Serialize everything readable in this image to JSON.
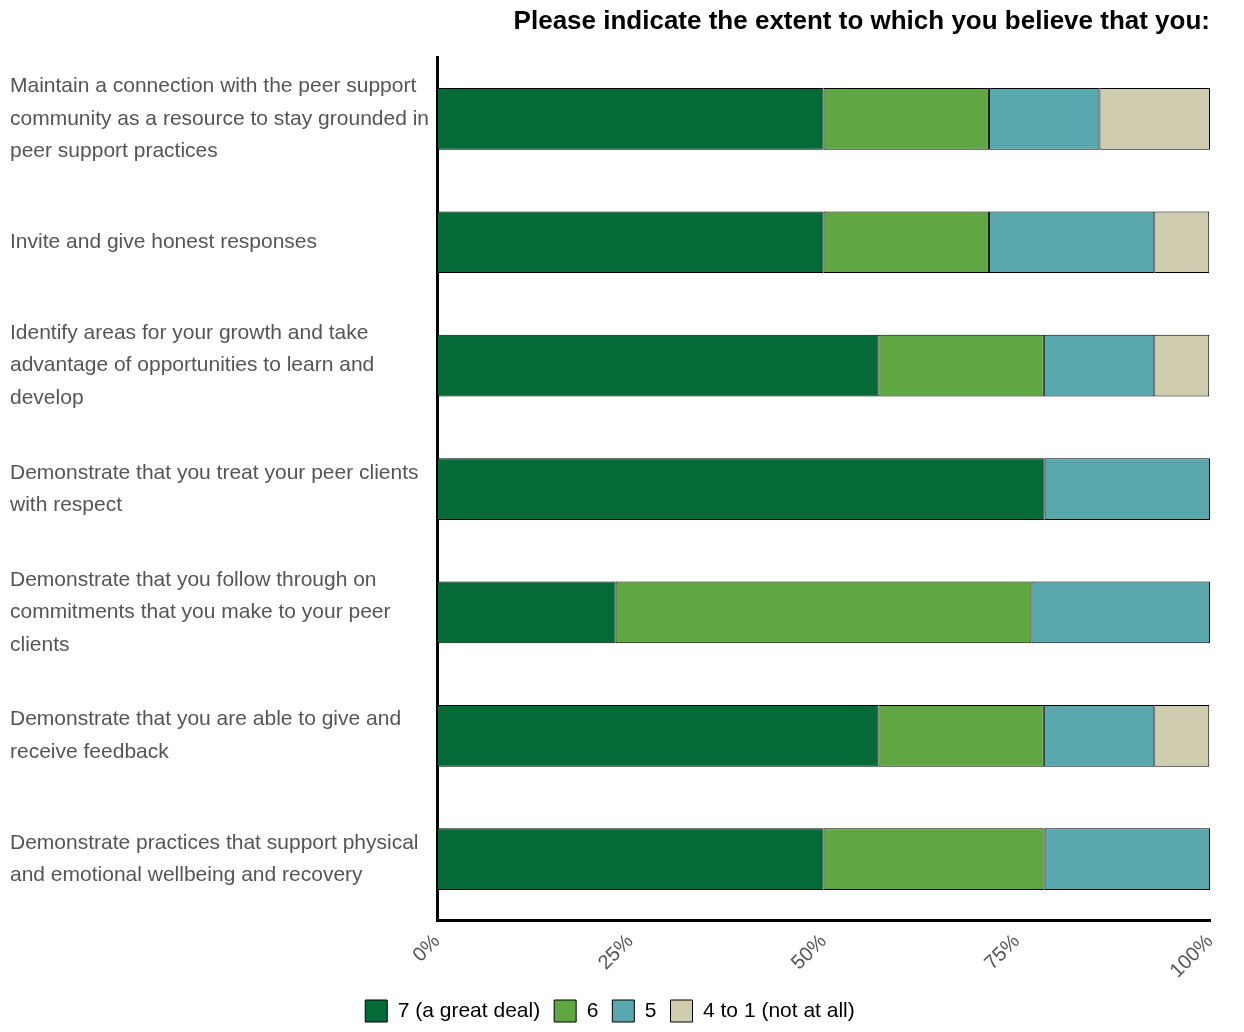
{
  "chart_data": {
    "type": "bar",
    "orientation": "horizontal",
    "stacked": true,
    "title": "Please indicate the extent to which you believe that you:",
    "categories": [
      "Maintain a connection with the peer support community as a resource to stay grounded in peer support practices",
      "Invite and give honest responses",
      "Identify areas for your growth and take advantage of opportunities to learn and develop",
      "Demonstrate that you treat your peer clients with respect",
      "Demonstrate that you follow through on commitments that you make to your peer clients",
      "Demonstrate that you are able to give and receive feedback",
      "Demonstrate practices that support physical and emotional wellbeing and recovery"
    ],
    "series": [
      {
        "name": "7 (a great deal)",
        "color": "#046a38",
        "values": [
          50,
          50,
          57.1,
          78.6,
          23.1,
          57.1,
          50
        ]
      },
      {
        "name": "6",
        "color": "#60a744",
        "values": [
          21.4,
          21.4,
          21.4,
          0,
          53.8,
          21.4,
          28.6
        ]
      },
      {
        "name": "5",
        "color": "#59a8ae",
        "values": [
          14.3,
          21.4,
          14.3,
          21.4,
          23.1,
          14.3,
          21.4
        ]
      },
      {
        "name": "4 to 1 (not at all)",
        "color": "#d0ccb0",
        "values": [
          14.3,
          7.1,
          7.1,
          0,
          0,
          7.1,
          0
        ]
      }
    ],
    "xlim": [
      0,
      100
    ],
    "xticks": [
      {
        "value": 0,
        "label": "0%"
      },
      {
        "value": 25,
        "label": "25%"
      },
      {
        "value": 50,
        "label": "50%"
      },
      {
        "value": 75,
        "label": "75%"
      },
      {
        "value": 100,
        "label": "100%"
      }
    ],
    "grid": false,
    "legend": "bottom"
  }
}
